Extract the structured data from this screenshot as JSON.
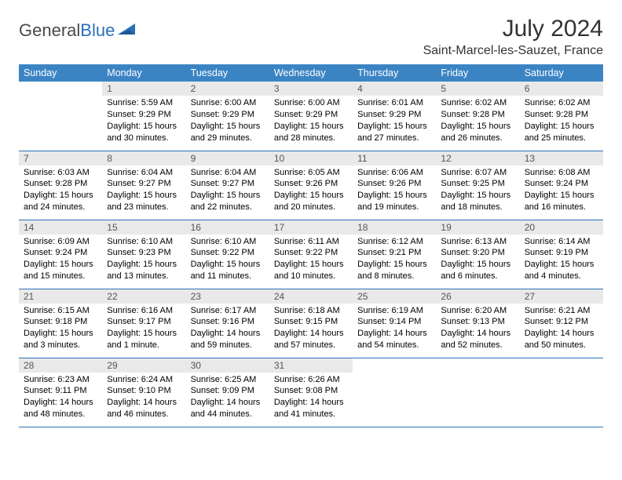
{
  "logo": {
    "textGeneral": "General",
    "textBlue": "Blue"
  },
  "header": {
    "title": "July 2024",
    "location": "Saint-Marcel-les-Sauzet, France"
  },
  "colors": {
    "headerBg": "#3b84c4",
    "headerText": "#ffffff",
    "dayNumBg": "#e9e9e9",
    "border": "#2a71b8"
  },
  "weekdays": [
    "Sunday",
    "Monday",
    "Tuesday",
    "Wednesday",
    "Thursday",
    "Friday",
    "Saturday"
  ],
  "weeks": [
    [
      {
        "day": "",
        "sunrise": "",
        "sunset": "",
        "daylight1": "",
        "daylight2": ""
      },
      {
        "day": "1",
        "sunrise": "Sunrise: 5:59 AM",
        "sunset": "Sunset: 9:29 PM",
        "daylight1": "Daylight: 15 hours",
        "daylight2": "and 30 minutes."
      },
      {
        "day": "2",
        "sunrise": "Sunrise: 6:00 AM",
        "sunset": "Sunset: 9:29 PM",
        "daylight1": "Daylight: 15 hours",
        "daylight2": "and 29 minutes."
      },
      {
        "day": "3",
        "sunrise": "Sunrise: 6:00 AM",
        "sunset": "Sunset: 9:29 PM",
        "daylight1": "Daylight: 15 hours",
        "daylight2": "and 28 minutes."
      },
      {
        "day": "4",
        "sunrise": "Sunrise: 6:01 AM",
        "sunset": "Sunset: 9:29 PM",
        "daylight1": "Daylight: 15 hours",
        "daylight2": "and 27 minutes."
      },
      {
        "day": "5",
        "sunrise": "Sunrise: 6:02 AM",
        "sunset": "Sunset: 9:28 PM",
        "daylight1": "Daylight: 15 hours",
        "daylight2": "and 26 minutes."
      },
      {
        "day": "6",
        "sunrise": "Sunrise: 6:02 AM",
        "sunset": "Sunset: 9:28 PM",
        "daylight1": "Daylight: 15 hours",
        "daylight2": "and 25 minutes."
      }
    ],
    [
      {
        "day": "7",
        "sunrise": "Sunrise: 6:03 AM",
        "sunset": "Sunset: 9:28 PM",
        "daylight1": "Daylight: 15 hours",
        "daylight2": "and 24 minutes."
      },
      {
        "day": "8",
        "sunrise": "Sunrise: 6:04 AM",
        "sunset": "Sunset: 9:27 PM",
        "daylight1": "Daylight: 15 hours",
        "daylight2": "and 23 minutes."
      },
      {
        "day": "9",
        "sunrise": "Sunrise: 6:04 AM",
        "sunset": "Sunset: 9:27 PM",
        "daylight1": "Daylight: 15 hours",
        "daylight2": "and 22 minutes."
      },
      {
        "day": "10",
        "sunrise": "Sunrise: 6:05 AM",
        "sunset": "Sunset: 9:26 PM",
        "daylight1": "Daylight: 15 hours",
        "daylight2": "and 20 minutes."
      },
      {
        "day": "11",
        "sunrise": "Sunrise: 6:06 AM",
        "sunset": "Sunset: 9:26 PM",
        "daylight1": "Daylight: 15 hours",
        "daylight2": "and 19 minutes."
      },
      {
        "day": "12",
        "sunrise": "Sunrise: 6:07 AM",
        "sunset": "Sunset: 9:25 PM",
        "daylight1": "Daylight: 15 hours",
        "daylight2": "and 18 minutes."
      },
      {
        "day": "13",
        "sunrise": "Sunrise: 6:08 AM",
        "sunset": "Sunset: 9:24 PM",
        "daylight1": "Daylight: 15 hours",
        "daylight2": "and 16 minutes."
      }
    ],
    [
      {
        "day": "14",
        "sunrise": "Sunrise: 6:09 AM",
        "sunset": "Sunset: 9:24 PM",
        "daylight1": "Daylight: 15 hours",
        "daylight2": "and 15 minutes."
      },
      {
        "day": "15",
        "sunrise": "Sunrise: 6:10 AM",
        "sunset": "Sunset: 9:23 PM",
        "daylight1": "Daylight: 15 hours",
        "daylight2": "and 13 minutes."
      },
      {
        "day": "16",
        "sunrise": "Sunrise: 6:10 AM",
        "sunset": "Sunset: 9:22 PM",
        "daylight1": "Daylight: 15 hours",
        "daylight2": "and 11 minutes."
      },
      {
        "day": "17",
        "sunrise": "Sunrise: 6:11 AM",
        "sunset": "Sunset: 9:22 PM",
        "daylight1": "Daylight: 15 hours",
        "daylight2": "and 10 minutes."
      },
      {
        "day": "18",
        "sunrise": "Sunrise: 6:12 AM",
        "sunset": "Sunset: 9:21 PM",
        "daylight1": "Daylight: 15 hours",
        "daylight2": "and 8 minutes."
      },
      {
        "day": "19",
        "sunrise": "Sunrise: 6:13 AM",
        "sunset": "Sunset: 9:20 PM",
        "daylight1": "Daylight: 15 hours",
        "daylight2": "and 6 minutes."
      },
      {
        "day": "20",
        "sunrise": "Sunrise: 6:14 AM",
        "sunset": "Sunset: 9:19 PM",
        "daylight1": "Daylight: 15 hours",
        "daylight2": "and 4 minutes."
      }
    ],
    [
      {
        "day": "21",
        "sunrise": "Sunrise: 6:15 AM",
        "sunset": "Sunset: 9:18 PM",
        "daylight1": "Daylight: 15 hours",
        "daylight2": "and 3 minutes."
      },
      {
        "day": "22",
        "sunrise": "Sunrise: 6:16 AM",
        "sunset": "Sunset: 9:17 PM",
        "daylight1": "Daylight: 15 hours",
        "daylight2": "and 1 minute."
      },
      {
        "day": "23",
        "sunrise": "Sunrise: 6:17 AM",
        "sunset": "Sunset: 9:16 PM",
        "daylight1": "Daylight: 14 hours",
        "daylight2": "and 59 minutes."
      },
      {
        "day": "24",
        "sunrise": "Sunrise: 6:18 AM",
        "sunset": "Sunset: 9:15 PM",
        "daylight1": "Daylight: 14 hours",
        "daylight2": "and 57 minutes."
      },
      {
        "day": "25",
        "sunrise": "Sunrise: 6:19 AM",
        "sunset": "Sunset: 9:14 PM",
        "daylight1": "Daylight: 14 hours",
        "daylight2": "and 54 minutes."
      },
      {
        "day": "26",
        "sunrise": "Sunrise: 6:20 AM",
        "sunset": "Sunset: 9:13 PM",
        "daylight1": "Daylight: 14 hours",
        "daylight2": "and 52 minutes."
      },
      {
        "day": "27",
        "sunrise": "Sunrise: 6:21 AM",
        "sunset": "Sunset: 9:12 PM",
        "daylight1": "Daylight: 14 hours",
        "daylight2": "and 50 minutes."
      }
    ],
    [
      {
        "day": "28",
        "sunrise": "Sunrise: 6:23 AM",
        "sunset": "Sunset: 9:11 PM",
        "daylight1": "Daylight: 14 hours",
        "daylight2": "and 48 minutes."
      },
      {
        "day": "29",
        "sunrise": "Sunrise: 6:24 AM",
        "sunset": "Sunset: 9:10 PM",
        "daylight1": "Daylight: 14 hours",
        "daylight2": "and 46 minutes."
      },
      {
        "day": "30",
        "sunrise": "Sunrise: 6:25 AM",
        "sunset": "Sunset: 9:09 PM",
        "daylight1": "Daylight: 14 hours",
        "daylight2": "and 44 minutes."
      },
      {
        "day": "31",
        "sunrise": "Sunrise: 6:26 AM",
        "sunset": "Sunset: 9:08 PM",
        "daylight1": "Daylight: 14 hours",
        "daylight2": "and 41 minutes."
      },
      {
        "day": "",
        "sunrise": "",
        "sunset": "",
        "daylight1": "",
        "daylight2": ""
      },
      {
        "day": "",
        "sunrise": "",
        "sunset": "",
        "daylight1": "",
        "daylight2": ""
      },
      {
        "day": "",
        "sunrise": "",
        "sunset": "",
        "daylight1": "",
        "daylight2": ""
      }
    ]
  ]
}
